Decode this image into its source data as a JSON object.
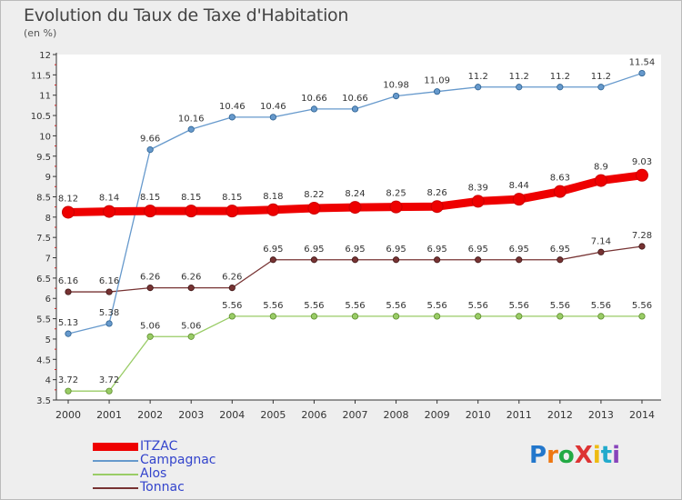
{
  "header": {
    "title": "Evolution du Taux de Taxe d'Habitation",
    "subtitle": "(en %)"
  },
  "logo": {
    "text": "ProXiti"
  },
  "chart_data": {
    "type": "line",
    "title": "Evolution du Taux de Taxe d'Habitation",
    "ylabel": "(en %)",
    "xlabel": "",
    "x": [
      2000,
      2001,
      2002,
      2003,
      2004,
      2005,
      2006,
      2007,
      2008,
      2009,
      2010,
      2011,
      2012,
      2013,
      2014
    ],
    "ylim": [
      3.5,
      12
    ],
    "yticks": [
      "3.5",
      "4",
      "4.5",
      "5",
      "5.5",
      "6",
      "6.5",
      "7",
      "7.5",
      "8",
      "8.5",
      "9",
      "9.5",
      "10",
      "10.5",
      "11",
      "11.5",
      "12"
    ],
    "grid": false,
    "legend_position": "bottom-left",
    "series": [
      {
        "name": "ITZAC",
        "color": "#ee0000",
        "values": [
          8.12,
          8.14,
          8.15,
          8.15,
          8.15,
          8.18,
          8.22,
          8.24,
          8.25,
          8.26,
          8.39,
          8.44,
          8.63,
          8.9,
          9.03
        ],
        "labels": [
          "8.12",
          "8.14",
          "8.15",
          "8.15",
          "8.15",
          "8.18",
          "8.22",
          "8.24",
          "8.25",
          "8.26",
          "8.39",
          "8.44",
          "8.63",
          "8.9",
          "9.03"
        ]
      },
      {
        "name": "Campagnac",
        "color": "#6699cc",
        "values": [
          5.13,
          5.38,
          9.66,
          10.16,
          10.46,
          10.46,
          10.66,
          10.66,
          10.98,
          11.09,
          11.2,
          11.2,
          11.2,
          11.2,
          11.54
        ],
        "labels": [
          "5.13",
          "5.38",
          "9.66",
          "10.16",
          "10.46",
          "10.46",
          "10.66",
          "10.66",
          "10.98",
          "11.09",
          "11.2",
          "11.2",
          "11.2",
          "11.2",
          "11.54"
        ]
      },
      {
        "name": "Alos",
        "color": "#99cc66",
        "values": [
          3.72,
          3.72,
          5.06,
          5.06,
          5.56,
          5.56,
          5.56,
          5.56,
          5.56,
          5.56,
          5.56,
          5.56,
          5.56,
          5.56,
          5.56
        ],
        "labels": [
          "3.72",
          "3.72",
          "5.06",
          "5.06",
          "5.56",
          "5.56",
          "5.56",
          "5.56",
          "5.56",
          "5.56",
          "5.56",
          "5.56",
          "5.56",
          "5.56",
          "5.56"
        ]
      },
      {
        "name": "Tonnac",
        "color": "#773333",
        "values": [
          6.16,
          6.16,
          6.26,
          6.26,
          6.26,
          6.95,
          6.95,
          6.95,
          6.95,
          6.95,
          6.95,
          6.95,
          6.95,
          7.14,
          7.28
        ],
        "labels": [
          "6.16",
          "6.16",
          "6.26",
          "6.26",
          "6.26",
          "6.95",
          "6.95",
          "6.95",
          "6.95",
          "6.95",
          "6.95",
          "6.95",
          "6.95",
          "7.14",
          "7.28"
        ]
      }
    ]
  }
}
